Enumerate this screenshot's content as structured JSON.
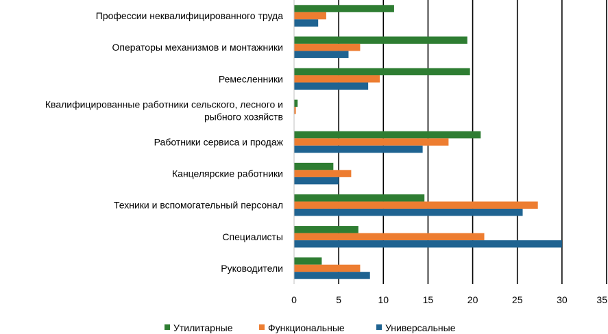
{
  "chart_data": {
    "type": "bar",
    "orientation": "horizontal",
    "title": "",
    "xlabel": "",
    "ylabel": "",
    "xlim": [
      0,
      35
    ],
    "x_ticks": [
      0,
      5,
      10,
      15,
      20,
      25,
      30,
      35
    ],
    "grid": "vertical",
    "legend_position": "bottom",
    "categories": [
      [
        "Профессии неквалифицированного труда"
      ],
      [
        "Операторы механизмов и монтажники"
      ],
      [
        "Ремесленники"
      ],
      [
        "Квалифицированные работники сельского, лесного и",
        "рыбного хозяйств"
      ],
      [
        "Работники сервиса и продаж"
      ],
      [
        "Канцелярские работники"
      ],
      [
        "Техники и вспомогательный персонал"
      ],
      [
        "Специалисты"
      ],
      [
        "Руководители"
      ]
    ],
    "series": [
      {
        "name": "Утилитарные",
        "color": "#2e7d32",
        "values": [
          11.2,
          19.4,
          19.7,
          0.4,
          20.9,
          4.4,
          14.6,
          7.2,
          3.1
        ]
      },
      {
        "name": "Функциональные",
        "color": "#ed7d31",
        "values": [
          3.6,
          7.4,
          9.6,
          0.2,
          17.3,
          6.4,
          27.3,
          21.3,
          7.4
        ]
      },
      {
        "name": "Универсальные",
        "color": "#1f6391",
        "values": [
          2.7,
          6.1,
          8.3,
          0.0,
          14.4,
          5.0,
          25.6,
          30.0,
          8.5
        ]
      }
    ]
  }
}
